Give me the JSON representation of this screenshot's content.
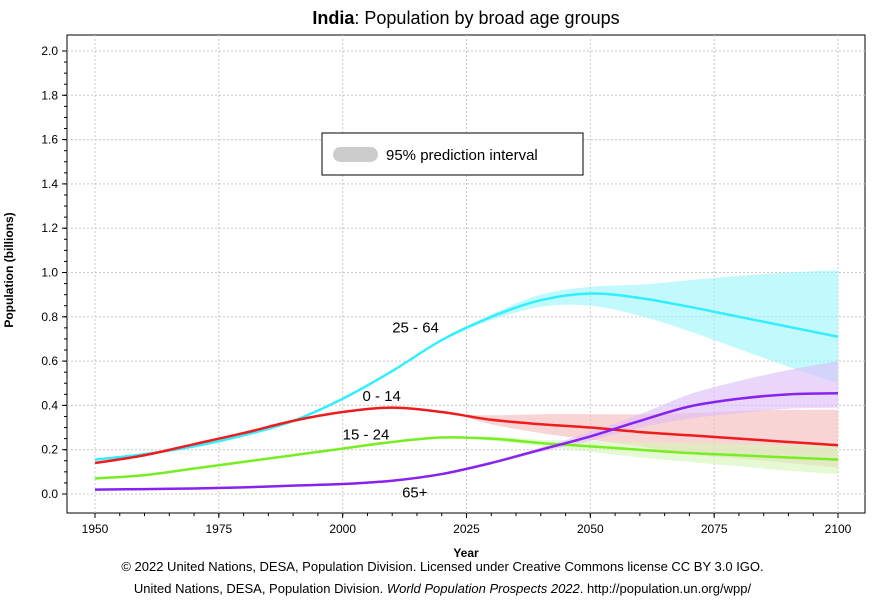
{
  "chart_data": {
    "type": "line",
    "title_bold": "India",
    "title_rest": ": Population by broad age groups",
    "xlabel": "Year",
    "ylabel": "Population (billions)",
    "xlim": [
      1950,
      2100
    ],
    "ylim": [
      0,
      2.0
    ],
    "x_ticks": [
      "1950",
      "1975",
      "2000",
      "2025",
      "2050",
      "2075",
      "2100"
    ],
    "y_ticks": [
      "0.0",
      "0.2",
      "0.4",
      "0.6",
      "0.8",
      "1.0",
      "1.2",
      "1.4",
      "1.6",
      "1.8",
      "2.0"
    ],
    "grid": true,
    "legend": {
      "label": "95% prediction interval",
      "placement": "upper-center"
    },
    "series": [
      {
        "name": "25 - 64",
        "color": "#33eeff",
        "band_color": "#9af5fb",
        "points": [
          [
            1950,
            0.155
          ],
          [
            1960,
            0.18
          ],
          [
            1970,
            0.215
          ],
          [
            1980,
            0.265
          ],
          [
            1990,
            0.33
          ],
          [
            2000,
            0.43
          ],
          [
            2010,
            0.555
          ],
          [
            2020,
            0.695
          ],
          [
            2030,
            0.8
          ],
          [
            2040,
            0.875
          ],
          [
            2050,
            0.905
          ],
          [
            2060,
            0.885
          ],
          [
            2070,
            0.845
          ],
          [
            2080,
            0.8
          ],
          [
            2090,
            0.755
          ],
          [
            2100,
            0.71
          ]
        ],
        "band": [
          [
            2023,
            0.72,
            0.72
          ],
          [
            2030,
            0.785,
            0.81
          ],
          [
            2040,
            0.845,
            0.9
          ],
          [
            2050,
            0.85,
            0.935
          ],
          [
            2060,
            0.805,
            0.945
          ],
          [
            2070,
            0.735,
            0.965
          ],
          [
            2080,
            0.655,
            0.985
          ],
          [
            2090,
            0.575,
            1.0
          ],
          [
            2100,
            0.5,
            1.01
          ]
        ]
      },
      {
        "name": "0 - 14",
        "color": "#ee1c1c",
        "band_color": "#f5b8b8",
        "points": [
          [
            1950,
            0.14
          ],
          [
            1960,
            0.175
          ],
          [
            1970,
            0.225
          ],
          [
            1980,
            0.275
          ],
          [
            1990,
            0.33
          ],
          [
            2000,
            0.37
          ],
          [
            2010,
            0.39
          ],
          [
            2020,
            0.37
          ],
          [
            2030,
            0.335
          ],
          [
            2040,
            0.315
          ],
          [
            2050,
            0.3
          ],
          [
            2060,
            0.28
          ],
          [
            2070,
            0.265
          ],
          [
            2080,
            0.25
          ],
          [
            2090,
            0.235
          ],
          [
            2100,
            0.22
          ]
        ],
        "band": [
          [
            2023,
            0.36,
            0.36
          ],
          [
            2030,
            0.315,
            0.355
          ],
          [
            2040,
            0.275,
            0.36
          ],
          [
            2050,
            0.245,
            0.36
          ],
          [
            2060,
            0.215,
            0.36
          ],
          [
            2070,
            0.18,
            0.365
          ],
          [
            2080,
            0.16,
            0.375
          ],
          [
            2090,
            0.14,
            0.38
          ],
          [
            2100,
            0.12,
            0.38
          ]
        ]
      },
      {
        "name": "15 - 24",
        "color": "#77ee22",
        "band_color": "#d4f7b8",
        "points": [
          [
            1950,
            0.07
          ],
          [
            1960,
            0.085
          ],
          [
            1970,
            0.115
          ],
          [
            1980,
            0.145
          ],
          [
            1990,
            0.175
          ],
          [
            2000,
            0.205
          ],
          [
            2010,
            0.235
          ],
          [
            2020,
            0.255
          ],
          [
            2030,
            0.25
          ],
          [
            2040,
            0.23
          ],
          [
            2050,
            0.215
          ],
          [
            2060,
            0.2
          ],
          [
            2070,
            0.185
          ],
          [
            2080,
            0.175
          ],
          [
            2090,
            0.165
          ],
          [
            2100,
            0.155
          ]
        ],
        "band": [
          [
            2023,
            0.255,
            0.255
          ],
          [
            2030,
            0.24,
            0.26
          ],
          [
            2040,
            0.215,
            0.245
          ],
          [
            2050,
            0.19,
            0.24
          ],
          [
            2060,
            0.165,
            0.235
          ],
          [
            2070,
            0.145,
            0.23
          ],
          [
            2080,
            0.125,
            0.225
          ],
          [
            2090,
            0.105,
            0.22
          ],
          [
            2100,
            0.09,
            0.22
          ]
        ]
      },
      {
        "name": "65+",
        "color": "#8822ee",
        "band_color": "#dcbaf6",
        "points": [
          [
            1950,
            0.02
          ],
          [
            1960,
            0.022
          ],
          [
            1970,
            0.025
          ],
          [
            1980,
            0.03
          ],
          [
            1990,
            0.038
          ],
          [
            2000,
            0.045
          ],
          [
            2010,
            0.06
          ],
          [
            2020,
            0.09
          ],
          [
            2030,
            0.14
          ],
          [
            2040,
            0.2
          ],
          [
            2050,
            0.26
          ],
          [
            2060,
            0.33
          ],
          [
            2070,
            0.395
          ],
          [
            2080,
            0.43
          ],
          [
            2090,
            0.45
          ],
          [
            2100,
            0.455
          ]
        ],
        "band": [
          [
            2023,
            0.1,
            0.1
          ],
          [
            2030,
            0.135,
            0.145
          ],
          [
            2040,
            0.19,
            0.21
          ],
          [
            2050,
            0.24,
            0.28
          ],
          [
            2060,
            0.3,
            0.36
          ],
          [
            2070,
            0.34,
            0.45
          ],
          [
            2080,
            0.365,
            0.51
          ],
          [
            2090,
            0.385,
            0.56
          ],
          [
            2100,
            0.39,
            0.6
          ]
        ]
      }
    ],
    "series_labels": [
      {
        "text": "25 - 64",
        "x": 2010,
        "y": 0.73
      },
      {
        "text": "0 - 14",
        "x": 2004,
        "y": 0.42
      },
      {
        "text": "15 - 24",
        "x": 2000,
        "y": 0.245
      },
      {
        "text": "65+",
        "x": 2012,
        "y": -0.015
      }
    ]
  },
  "credits": {
    "line1": "© 2022 United Nations, DESA, Population Division. Licensed under Creative Commons license CC BY 3.0 IGO.",
    "line2_prefix": "United Nations, DESA, Population Division. ",
    "line2_italic": "World Population Prospects 2022",
    "line2_suffix": ". http://population.un.org/wpp/"
  }
}
